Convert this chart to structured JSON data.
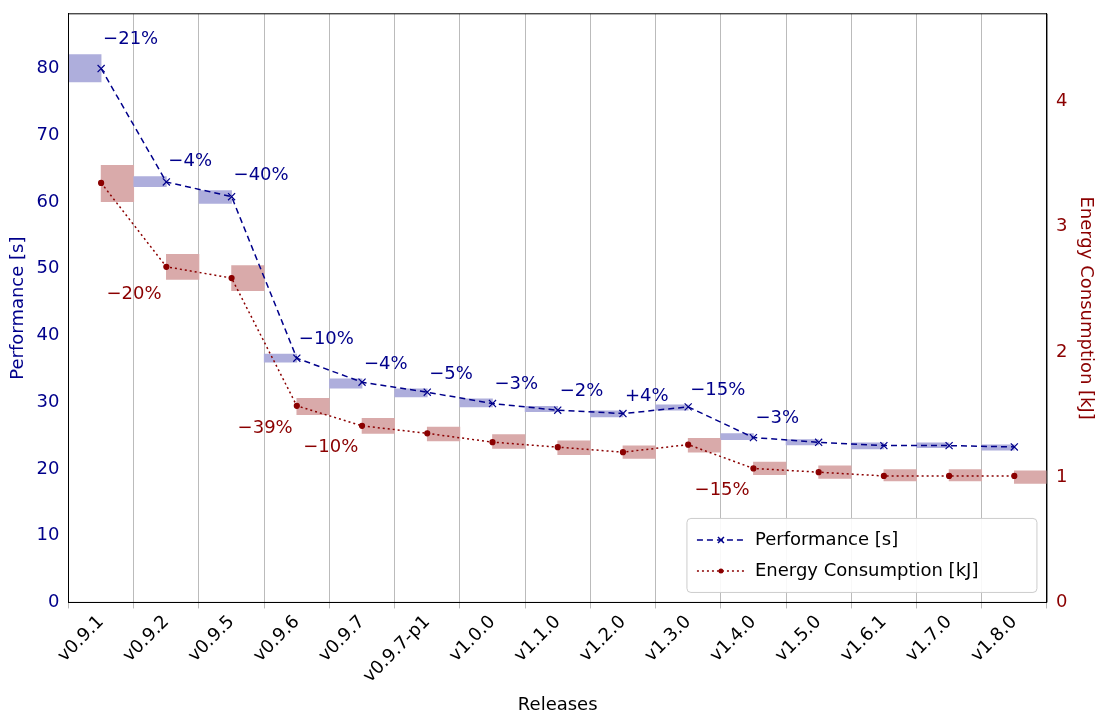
{
  "chart_data": {
    "type": "line",
    "xlabel": "Releases",
    "ylabel": "Performance [s]",
    "y2label": "Energy Consumption [kJ]",
    "categories": [
      "v0.9.1",
      "v0.9.2",
      "v0.9.5",
      "v0.9.6",
      "v0.9.7",
      "v0.9.7-p1",
      "v1.0.0",
      "v1.1.0",
      "v1.2.0",
      "v1.3.0",
      "v1.4.0",
      "v1.5.0",
      "v1.6.1",
      "v1.7.0",
      "v1.8.0"
    ],
    "ylim": [
      0,
      88.2
    ],
    "yticks": [
      0,
      10,
      20,
      30,
      40,
      50,
      60,
      70,
      80
    ],
    "y2lim": [
      0,
      4.7
    ],
    "y2ticks": [
      0,
      1,
      2,
      3,
      4
    ],
    "grid": "x",
    "legend": "bottom right",
    "annotations": [
      {
        "text": "−21%",
        "x": "v0.9.1",
        "y": 82.1
      },
      {
        "text": "−4%",
        "x": "v0.9.2",
        "y": 63.8
      },
      {
        "text": "−40%",
        "x": "v0.9.5",
        "y": 61.7
      },
      {
        "text": "−10%",
        "x": "v0.9.6",
        "y": 37.2
      },
      {
        "text": "−4%",
        "x": "v0.9.7",
        "y": 33.5
      },
      {
        "text": "−5%",
        "x": "v0.9.7-p1",
        "y": 32.0
      },
      {
        "text": "−3%",
        "x": "v1.0.0",
        "y": 30.5
      },
      {
        "text": "−2%",
        "x": "v1.1.0",
        "y": 29.4
      },
      {
        "text": "+4%",
        "x": "v1.2.0",
        "y": 28.7
      },
      {
        "text": "−15%",
        "x": "v1.3.0",
        "y": 29.6
      },
      {
        "text": "−3%",
        "x": "v1.4.0",
        "y": 25.3
      },
      "−20%",
      "−39%",
      "−10%",
      "−15%"
    ],
    "series": [
      {
        "type": "bar",
        "color": "#aeaedc",
        "base": [
          78.0,
          62.3,
          59.8,
          36.0,
          32.1,
          30.8,
          29.3,
          28.6,
          27.8,
          28.8,
          24.4,
          23.6,
          23.0,
          23.2,
          22.8
        ],
        "values": [
          4.1,
          1.5,
          1.9,
          1.2,
          1.4,
          1.2,
          1.2,
          0.8,
          0.9,
          0.8,
          0.9,
          0.8,
          0.9,
          0.7,
          0.8
        ]
      },
      {
        "type": "bar",
        "axis": "y2",
        "color": "#d9aaaa",
        "base": [
          3.2,
          2.58,
          2.49,
          1.5,
          1.35,
          1.29,
          1.23,
          1.18,
          1.15,
          1.2,
          1.02,
          0.99,
          0.97,
          0.97,
          0.95
        ],
        "values": [
          0.29,
          0.2,
          0.2,
          0.13,
          0.12,
          0.11,
          0.11,
          0.11,
          0.1,
          0.11,
          0.1,
          0.1,
          0.09,
          0.09,
          0.1
        ]
      },
      {
        "type": "line",
        "name": "Performance [s]",
        "color": "#00008b",
        "marker": "cross",
        "line_style": "dashed",
        "values": [
          80.0,
          63.0,
          60.8,
          36.6,
          33.0,
          31.5,
          29.8,
          28.8,
          28.3,
          29.3,
          24.7,
          24.0,
          23.5,
          23.5,
          23.3
        ]
      },
      {
        "type": "line",
        "name": "Energy Consumption [kJ]",
        "axis": "y2",
        "color": "#8b0000",
        "marker": "circle",
        "line_style": "dotted",
        "values": [
          3.35,
          2.68,
          2.59,
          1.57,
          1.41,
          1.35,
          1.28,
          1.24,
          1.2,
          1.26,
          1.07,
          1.04,
          1.01,
          1.01,
          1.01
        ]
      }
    ]
  }
}
